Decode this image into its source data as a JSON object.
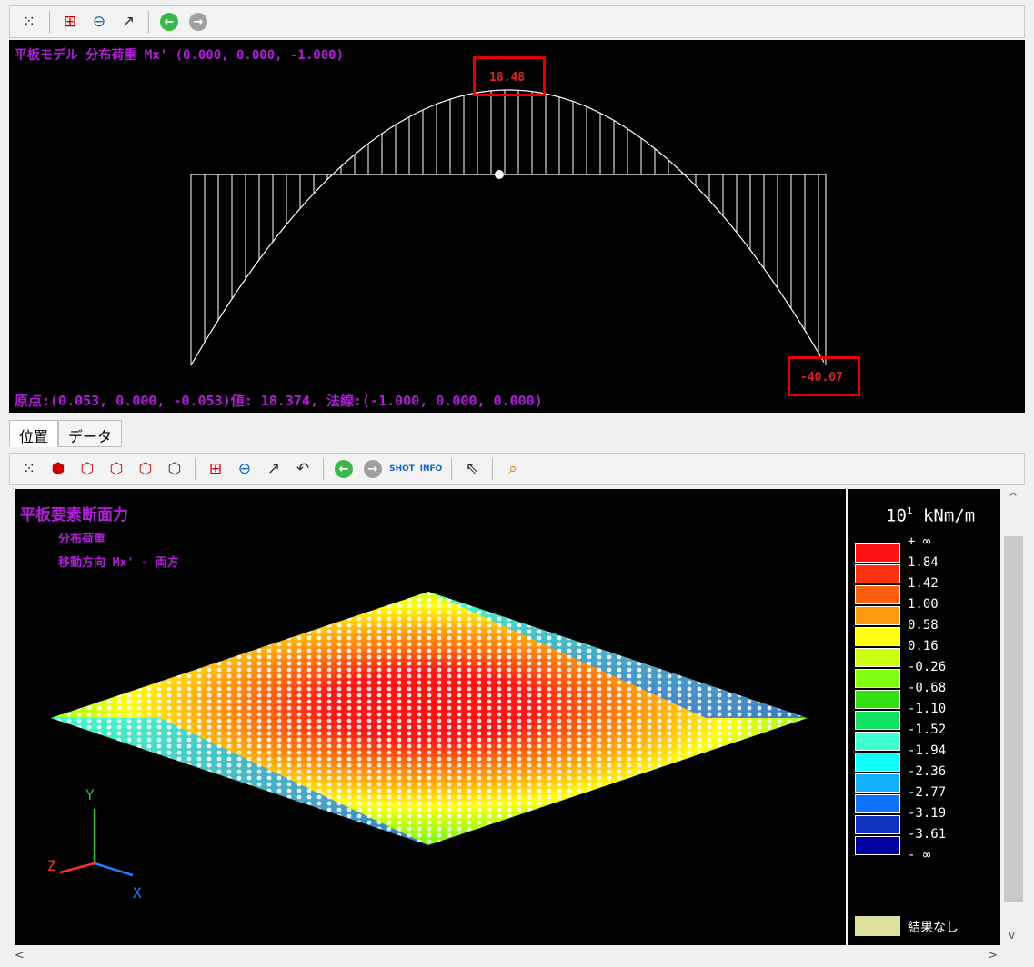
{
  "top_view": {
    "title": "平板モデル 分布荷重 Mx' (0.000, 0.000, -1.000)",
    "footer": "原点:(0.053, 0.000, -0.053)値: 18.374, 法線:(-1.000, 0.000, 0.000)",
    "max_label": "18.48",
    "min_label": "-40.07"
  },
  "tabs": [
    {
      "label": "位置"
    },
    {
      "label": "データ"
    }
  ],
  "bottom_view": {
    "title": "平板要素断面力",
    "subtitle1": "分布荷重",
    "subtitle2": "移動方向 Mx' - 両方"
  },
  "axes": {
    "y": "Y",
    "z": "Z",
    "x": "X"
  },
  "legend": {
    "unit_base": "10",
    "unit_exp": "1",
    "unit": "kNm/m",
    "labels": [
      "+ ∞",
      "1.84",
      "1.42",
      "1.00",
      "0.58",
      "0.16",
      "-0.26",
      "-0.68",
      "-1.10",
      "-1.52",
      "-1.94",
      "-2.36",
      "-2.77",
      "-3.19",
      "-3.61",
      "- ∞"
    ],
    "colors": [
      "#ff1010",
      "#ff3010",
      "#ff6010",
      "#ff9a10",
      "#ffff10",
      "#ccff10",
      "#80ff10",
      "#30e010",
      "#10e060",
      "#40ffd0",
      "#10ffff",
      "#10b0ff",
      "#1070ff",
      "#1030c0",
      "#0000a0"
    ],
    "no_result_color": "#e0e0a0",
    "no_result_label": "結果なし"
  },
  "scroll": {
    "up": "^",
    "down": "v",
    "left": "<",
    "right": ">"
  }
}
